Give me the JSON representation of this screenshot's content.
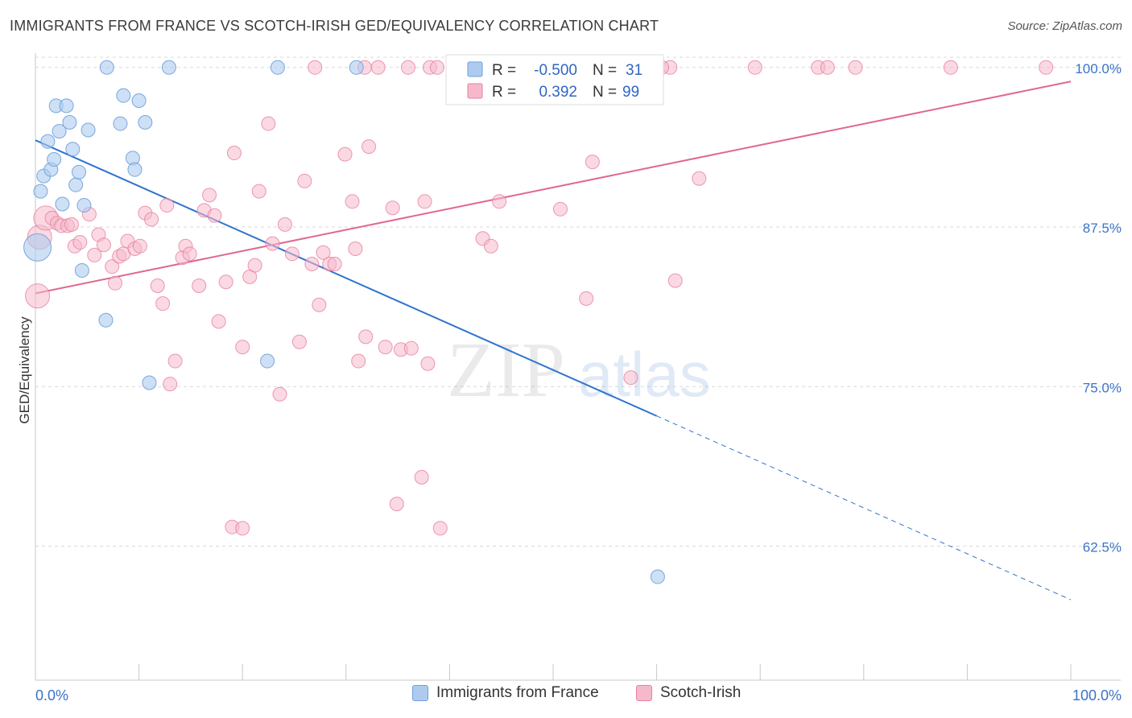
{
  "header": {
    "title": "IMMIGRANTS FROM FRANCE VS SCOTCH-IRISH GED/EQUIVALENCY CORRELATION CHART",
    "source": "Source: ZipAtlas.com"
  },
  "watermark": {
    "zip": "ZIP",
    "atlas": "atlas"
  },
  "colors": {
    "blue_fill": "#aecbef",
    "blue_stroke": "#6e9fd9",
    "blue_line": "#2f74d0",
    "pink_fill": "#f6b9cc",
    "pink_stroke": "#e77fa0",
    "pink_line": "#e0688f",
    "axis_label": "#3a73c9",
    "grid": "#d9d9d9"
  },
  "stats_legend": {
    "rows": [
      {
        "r_label": "R =",
        "r_value": "-0.500",
        "n_label": "N =",
        "n_value": "31"
      },
      {
        "r_label": "R =",
        "r_value": "0.392",
        "n_label": "N =",
        "n_value": "99"
      }
    ]
  },
  "bottom_legend": {
    "items": [
      {
        "label": "Immigrants from France"
      },
      {
        "label": "Scotch-Irish"
      }
    ]
  },
  "chart_data": {
    "type": "scatter",
    "title": "IMMIGRANTS FROM FRANCE VS SCOTCH-IRISH GED/EQUIVALENCY CORRELATION CHART",
    "xlabel": "",
    "ylabel": "GED/Equivalency",
    "xlim": [
      0,
      100
    ],
    "ylim": [
      52,
      101.5
    ],
    "x_tick_labels": [
      "0.0%",
      "100.0%"
    ],
    "y_ticks": [
      62.5,
      75.0,
      87.5,
      100.0
    ],
    "y_tick_labels": [
      "62.5%",
      "75.0%",
      "87.5%",
      "100.0%"
    ],
    "grid": true,
    "legend_position": "top-center",
    "series": [
      {
        "name": "Immigrants from France",
        "r": -0.5,
        "n": 31,
        "trend": {
          "x0": 0,
          "y0": 94.3,
          "x1": 60,
          "y1": 72.7,
          "dashed_to_x": 100,
          "dashed_to_y": 58.3
        },
        "points": [
          [
            0.2,
            85.9
          ],
          [
            0.5,
            90.3
          ],
          [
            0.8,
            91.5
          ],
          [
            1.2,
            94.2
          ],
          [
            1.5,
            92.0
          ],
          [
            1.8,
            92.8
          ],
          [
            2.0,
            97.0
          ],
          [
            2.3,
            95.0
          ],
          [
            2.6,
            89.3
          ],
          [
            3.0,
            97.0
          ],
          [
            3.3,
            95.7
          ],
          [
            3.6,
            93.6
          ],
          [
            3.9,
            90.8
          ],
          [
            4.2,
            91.8
          ],
          [
            4.5,
            84.1
          ],
          [
            4.7,
            89.2
          ],
          [
            5.1,
            95.1
          ],
          [
            6.8,
            80.2
          ],
          [
            6.9,
            100.0
          ],
          [
            8.2,
            95.6
          ],
          [
            8.5,
            97.8
          ],
          [
            9.4,
            92.9
          ],
          [
            9.6,
            92.0
          ],
          [
            10.0,
            97.4
          ],
          [
            10.6,
            95.7
          ],
          [
            11.0,
            75.3
          ],
          [
            12.9,
            100.0
          ],
          [
            22.4,
            77.0
          ],
          [
            23.4,
            100.0
          ],
          [
            31.0,
            100.0
          ],
          [
            60.1,
            60.1
          ]
        ]
      },
      {
        "name": "Scotch-Irish",
        "r": 0.392,
        "n": 99,
        "trend": {
          "x0": 0,
          "y0": 82.3,
          "x1": 100,
          "y1": 98.9
        },
        "points": [
          [
            0.2,
            82.1
          ],
          [
            0.4,
            86.7
          ],
          [
            1.0,
            88.2
          ],
          [
            1.6,
            88.2
          ],
          [
            2.1,
            87.8
          ],
          [
            2.5,
            87.6
          ],
          [
            3.1,
            87.6
          ],
          [
            3.5,
            87.7
          ],
          [
            3.8,
            86.0
          ],
          [
            4.3,
            86.3
          ],
          [
            5.2,
            88.5
          ],
          [
            5.7,
            85.3
          ],
          [
            6.1,
            86.9
          ],
          [
            6.6,
            86.1
          ],
          [
            7.4,
            84.4
          ],
          [
            7.7,
            83.1
          ],
          [
            8.1,
            85.2
          ],
          [
            8.5,
            85.4
          ],
          [
            8.9,
            86.4
          ],
          [
            9.6,
            85.8
          ],
          [
            10.1,
            86.0
          ],
          [
            10.6,
            88.6
          ],
          [
            11.2,
            88.1
          ],
          [
            11.8,
            82.9
          ],
          [
            12.3,
            81.5
          ],
          [
            12.7,
            89.2
          ],
          [
            13.0,
            75.2
          ],
          [
            13.5,
            77.0
          ],
          [
            14.2,
            85.1
          ],
          [
            14.5,
            86.0
          ],
          [
            14.9,
            85.4
          ],
          [
            15.8,
            82.9
          ],
          [
            16.3,
            88.8
          ],
          [
            16.8,
            90.0
          ],
          [
            17.3,
            88.4
          ],
          [
            17.7,
            80.1
          ],
          [
            18.4,
            83.2
          ],
          [
            19.2,
            93.3
          ],
          [
            20.0,
            78.1
          ],
          [
            20.7,
            83.6
          ],
          [
            21.2,
            84.5
          ],
          [
            21.6,
            90.3
          ],
          [
            22.5,
            95.6
          ],
          [
            22.9,
            86.2
          ],
          [
            23.6,
            74.4
          ],
          [
            24.1,
            87.7
          ],
          [
            24.8,
            85.4
          ],
          [
            25.5,
            78.5
          ],
          [
            26.0,
            91.1
          ],
          [
            26.7,
            84.6
          ],
          [
            27.4,
            81.4
          ],
          [
            27.8,
            85.5
          ],
          [
            28.4,
            84.6
          ],
          [
            28.9,
            84.6
          ],
          [
            29.9,
            93.2
          ],
          [
            30.6,
            89.5
          ],
          [
            30.9,
            85.8
          ],
          [
            31.2,
            77.0
          ],
          [
            31.9,
            78.9
          ],
          [
            32.2,
            93.8
          ],
          [
            33.8,
            78.1
          ],
          [
            34.5,
            89.0
          ],
          [
            35.3,
            77.9
          ],
          [
            36.0,
            100.0
          ],
          [
            36.3,
            78.0
          ],
          [
            37.3,
            67.9
          ],
          [
            37.6,
            89.5
          ],
          [
            37.9,
            76.8
          ],
          [
            38.1,
            100.0
          ],
          [
            38.8,
            100.0
          ],
          [
            42.0,
            100.0
          ],
          [
            43.2,
            86.6
          ],
          [
            44.0,
            86.0
          ],
          [
            44.8,
            89.5
          ],
          [
            46.0,
            100.0
          ],
          [
            50.7,
            88.9
          ],
          [
            52.4,
            100.0
          ],
          [
            53.2,
            81.9
          ],
          [
            53.8,
            92.6
          ],
          [
            56.0,
            100.0
          ],
          [
            57.5,
            75.7
          ],
          [
            61.3,
            100.0
          ],
          [
            61.8,
            83.3
          ],
          [
            64.1,
            91.3
          ],
          [
            69.5,
            100.0
          ],
          [
            75.6,
            100.0
          ],
          [
            76.5,
            100.0
          ],
          [
            79.2,
            100.0
          ],
          [
            88.4,
            100.0
          ],
          [
            97.6,
            100.0
          ],
          [
            19.0,
            64.0
          ],
          [
            20.0,
            63.9
          ],
          [
            34.9,
            65.8
          ],
          [
            39.1,
            63.9
          ],
          [
            31.8,
            100.0
          ],
          [
            27.0,
            100.0
          ],
          [
            33.1,
            100.0
          ],
          [
            45.2,
            100.0
          ],
          [
            60.5,
            100.0
          ]
        ]
      }
    ]
  }
}
